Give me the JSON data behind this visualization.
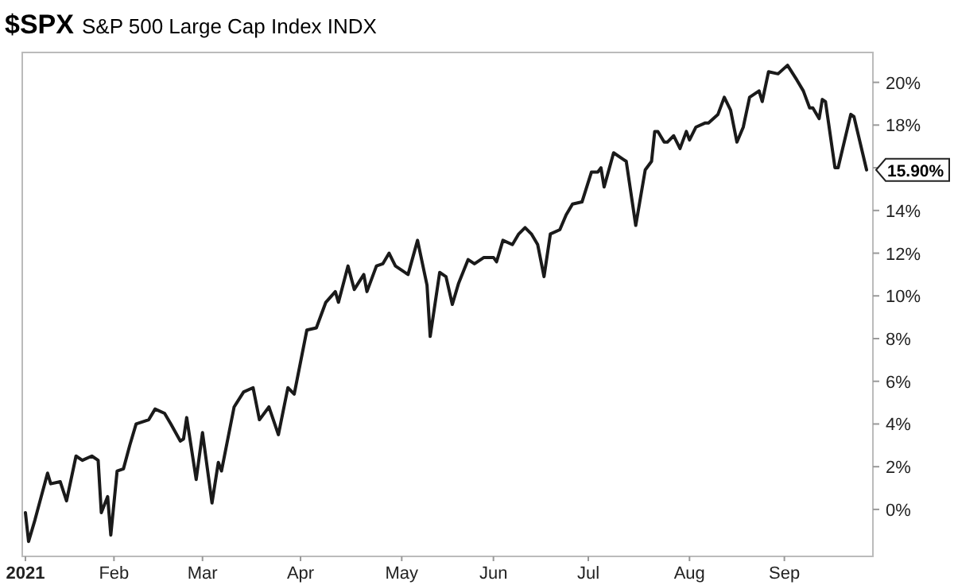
{
  "chart_data": {
    "type": "line",
    "title": "$SPX",
    "subtitle": "S&P 500 Large Cap Index INDX",
    "x": [
      "2021-01-04",
      "2021-01-05",
      "2021-01-07",
      "2021-01-11",
      "2021-01-12",
      "2021-01-15",
      "2021-01-17",
      "2021-01-20",
      "2021-01-22",
      "2021-01-25",
      "2021-01-27",
      "2021-01-28",
      "2021-01-30",
      "2021-01-31",
      "2021-02-02",
      "2021-02-04",
      "2021-02-06",
      "2021-02-08",
      "2021-02-12",
      "2021-02-14",
      "2021-02-17",
      "2021-02-19",
      "2021-02-22",
      "2021-02-23",
      "2021-02-24",
      "2021-02-27",
      "2021-03-01",
      "2021-03-04",
      "2021-03-06",
      "2021-03-07",
      "2021-03-11",
      "2021-03-14",
      "2021-03-17",
      "2021-03-19",
      "2021-03-22",
      "2021-03-25",
      "2021-03-28",
      "2021-03-30",
      "2021-04-03",
      "2021-04-06",
      "2021-04-09",
      "2021-04-12",
      "2021-04-13",
      "2021-04-16",
      "2021-04-18",
      "2021-04-21",
      "2021-04-22",
      "2021-04-25",
      "2021-04-27",
      "2021-04-29",
      "2021-05-01",
      "2021-05-05",
      "2021-05-08",
      "2021-05-11",
      "2021-05-12",
      "2021-05-15",
      "2021-05-17",
      "2021-05-19",
      "2021-05-21",
      "2021-05-24",
      "2021-05-26",
      "2021-05-29",
      "2021-06-01",
      "2021-06-02",
      "2021-06-04",
      "2021-06-07",
      "2021-06-09",
      "2021-06-11",
      "2021-06-13",
      "2021-06-15",
      "2021-06-17",
      "2021-06-19",
      "2021-06-22",
      "2021-06-24",
      "2021-06-26",
      "2021-06-29",
      "2021-07-02",
      "2021-07-04",
      "2021-07-05",
      "2021-07-06",
      "2021-07-09",
      "2021-07-12",
      "2021-07-13",
      "2021-07-16",
      "2021-07-19",
      "2021-07-21",
      "2021-07-22",
      "2021-07-23",
      "2021-07-25",
      "2021-07-26",
      "2021-07-28",
      "2021-07-30",
      "2021-08-01",
      "2021-08-02",
      "2021-08-04",
      "2021-08-07",
      "2021-08-08",
      "2021-08-11",
      "2021-08-13",
      "2021-08-15",
      "2021-08-17",
      "2021-08-19",
      "2021-08-21",
      "2021-08-24",
      "2021-08-25",
      "2021-08-27",
      "2021-08-30",
      "2021-09-02",
      "2021-09-05",
      "2021-09-07",
      "2021-09-09",
      "2021-09-10",
      "2021-09-12",
      "2021-09-13",
      "2021-09-14",
      "2021-09-17",
      "2021-09-18",
      "2021-09-22",
      "2021-09-23",
      "2021-09-27"
    ],
    "series": [
      {
        "color": "#1a1a1a",
        "values": [
          -0.15,
          -1.5,
          -0.5,
          1.7,
          1.2,
          1.3,
          0.4,
          2.5,
          2.3,
          2.5,
          2.3,
          -0.15,
          0.6,
          -1.2,
          1.8,
          1.9,
          3.0,
          4.0,
          4.2,
          4.7,
          4.5,
          4.0,
          3.2,
          3.3,
          4.3,
          1.4,
          3.6,
          0.3,
          2.2,
          1.8,
          4.8,
          5.5,
          5.7,
          4.2,
          4.8,
          3.5,
          5.7,
          5.4,
          8.4,
          8.5,
          9.7,
          10.2,
          9.7,
          11.4,
          10.3,
          11.0,
          10.2,
          11.4,
          11.5,
          12.0,
          11.4,
          11.0,
          12.6,
          10.5,
          8.1,
          11.1,
          10.9,
          9.6,
          10.6,
          11.7,
          11.5,
          11.8,
          11.8,
          11.6,
          12.6,
          12.4,
          12.9,
          13.2,
          12.9,
          12.4,
          10.9,
          12.9,
          13.1,
          13.8,
          14.3,
          14.4,
          15.8,
          15.8,
          16.0,
          15.1,
          16.7,
          16.4,
          16.3,
          13.3,
          15.9,
          16.3,
          17.7,
          17.7,
          17.2,
          17.2,
          17.5,
          16.9,
          17.7,
          17.3,
          17.9,
          18.1,
          18.1,
          18.5,
          19.3,
          18.7,
          17.2,
          17.9,
          19.3,
          19.6,
          19.1,
          20.5,
          20.4,
          20.8,
          20.1,
          19.6,
          18.8,
          18.8,
          18.3,
          19.2,
          19.1,
          16.0,
          16.0,
          18.5,
          18.4,
          15.9
        ],
        "value_labels": [
          null,
          null,
          null,
          null,
          null,
          null,
          null,
          null,
          null,
          null,
          null,
          null,
          null,
          null,
          null,
          null,
          null,
          null,
          null,
          null,
          null,
          null,
          null,
          null,
          null,
          null,
          null,
          null,
          null,
          null,
          null,
          null,
          null,
          null,
          null,
          null,
          null,
          null,
          null,
          null,
          null,
          null,
          null,
          null,
          null,
          null,
          null,
          null,
          null,
          null,
          null,
          null,
          null,
          null,
          null,
          null,
          null,
          null,
          null,
          null,
          null,
          null,
          null,
          null,
          null,
          null,
          null,
          null,
          null,
          null,
          null,
          null,
          null,
          null,
          null,
          null,
          null,
          null,
          null,
          null,
          null,
          null,
          null,
          null,
          null,
          null,
          null,
          null,
          null,
          null,
          null,
          null,
          null,
          null,
          null,
          null,
          null,
          null,
          null,
          null,
          null,
          null,
          null,
          null,
          null,
          null,
          null,
          null,
          null,
          null,
          null,
          null,
          null,
          null,
          null,
          null,
          null,
          null,
          null,
          "15.90%"
        ]
      }
    ],
    "xlim": [
      "2021-01-03",
      "2021-09-29"
    ],
    "xticks": [
      {
        "value": "2021-01-04",
        "label": "2021"
      },
      {
        "value": "2021-02-01",
        "label": "Feb"
      },
      {
        "value": "2021-03-01",
        "label": "Mar"
      },
      {
        "value": "2021-04-01",
        "label": "Apr"
      },
      {
        "value": "2021-05-03",
        "label": "May"
      },
      {
        "value": "2021-06-01",
        "label": "Jun"
      },
      {
        "value": "2021-07-01",
        "label": "Jul"
      },
      {
        "value": "2021-08-02",
        "label": "Aug"
      },
      {
        "value": "2021-09-01",
        "label": "Sep"
      }
    ],
    "ylim": [
      -2.2,
      21.4
    ],
    "yticks": [
      {
        "value": 0,
        "label": "0%"
      },
      {
        "value": 2,
        "label": "2%"
      },
      {
        "value": 4,
        "label": "4%"
      },
      {
        "value": 6,
        "label": "6%"
      },
      {
        "value": 8,
        "label": "8%"
      },
      {
        "value": 10,
        "label": "10%"
      },
      {
        "value": 12,
        "label": "12%"
      },
      {
        "value": 14,
        "label": "14%"
      },
      {
        "value": 16,
        "label": null
      },
      {
        "value": 18,
        "label": "18%"
      },
      {
        "value": 20,
        "label": "20%"
      }
    ],
    "grid": false,
    "marker": "none",
    "line_style": "solid"
  }
}
